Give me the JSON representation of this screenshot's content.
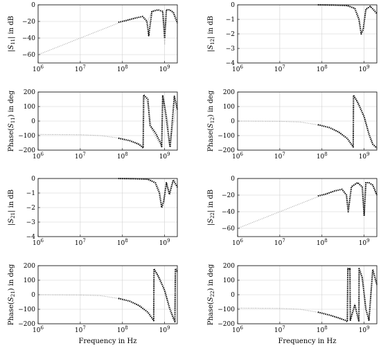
{
  "chart_data": [
    {
      "type": "line",
      "ylabel": "|S11| in dB",
      "xlabel": "",
      "xscale": "log",
      "xlim": [
        1000000,
        2000000000
      ],
      "ylim": [
        -70,
        0
      ],
      "yticks": [
        0,
        -20,
        -40,
        -60
      ],
      "grid": true,
      "series": [
        {
          "style": "gray-dotted",
          "x": [
            1000000,
            3000000,
            10000000,
            30000000,
            100000000,
            200000000,
            300000000,
            400000000,
            500000000,
            700000000,
            900000000,
            1000000000,
            1100000000,
            1300000000,
            1600000000,
            2000000000
          ],
          "y": [
            -60,
            -50.5,
            -40,
            -30.5,
            -20,
            -16,
            -14,
            -19,
            -8,
            -6,
            -8,
            -48,
            -6,
            -6,
            -8,
            -18
          ]
        },
        {
          "style": "black-dotted",
          "x": [
            80000000,
            120000000,
            200000000,
            300000000,
            380000000,
            420000000,
            500000000,
            700000000,
            900000000,
            1000000000,
            1100000000,
            1300000000,
            1600000000,
            2000000000
          ],
          "y": [
            -21,
            -19,
            -16,
            -14,
            -20,
            -37,
            -8,
            -6,
            -8,
            -40,
            -6,
            -6,
            -9,
            -22
          ]
        }
      ]
    },
    {
      "type": "line",
      "ylabel": "|S12| in dB",
      "xlabel": "",
      "xscale": "log",
      "xlim": [
        1000000,
        2000000000
      ],
      "ylim": [
        -4,
        0
      ],
      "yticks": [
        0,
        -1,
        -2,
        -3,
        -4
      ],
      "grid": true,
      "series": [
        {
          "style": "gray-dotted",
          "x": [
            80000000,
            200000000,
            400000000,
            600000000,
            750000000,
            850000000,
            950000000,
            1100000000,
            1400000000,
            2000000000
          ],
          "y": [
            0,
            0,
            -0.05,
            -0.2,
            -0.8,
            -1.9,
            -1.6,
            -0.3,
            -0.1,
            -0.5
          ]
        },
        {
          "style": "black-dotted",
          "x": [
            80000000,
            200000000,
            400000000,
            600000000,
            750000000,
            850000000,
            950000000,
            1100000000,
            1400000000,
            2000000000
          ],
          "y": [
            0,
            -0.02,
            -0.05,
            -0.25,
            -1.0,
            -2.0,
            -1.7,
            -0.3,
            -0.1,
            -0.6
          ]
        }
      ]
    },
    {
      "type": "line",
      "ylabel": "Phase(S11) in deg",
      "xlabel": "",
      "xscale": "log",
      "xlim": [
        1000000,
        2000000000
      ],
      "ylim": [
        -200,
        200
      ],
      "yticks": [
        200,
        100,
        0,
        -100,
        -200
      ],
      "grid": true,
      "series": [
        {
          "style": "gray-dotted",
          "x": [
            1000000,
            10000000,
            30000000,
            100000000,
            200000000,
            300000000,
            310000000,
            400000000,
            500000000,
            700000000,
            850000000,
            900000000,
            1200000000,
            1300000000,
            2000000000
          ],
          "y": [
            -92,
            -94,
            -100,
            -120,
            -150,
            -178,
            178,
            120,
            -60,
            -140,
            -170,
            175,
            0,
            -170,
            140
          ]
        },
        {
          "style": "black-dotted",
          "x": [
            80000000,
            150000000,
            250000000,
            310000000,
            320000000,
            400000000,
            450000000,
            600000000,
            800000000,
            850000000,
            900000000,
            1050000000,
            1300000000,
            1350000000,
            1700000000,
            2000000000
          ],
          "y": [
            -118,
            -135,
            -160,
            -185,
            180,
            150,
            -30,
            -80,
            -150,
            -175,
            178,
            60,
            -150,
            -180,
            170,
            80
          ]
        }
      ]
    },
    {
      "type": "line",
      "ylabel": "Phase(S12) in deg",
      "xlabel": "",
      "xscale": "log",
      "xlim": [
        1000000,
        2000000000
      ],
      "ylim": [
        -200,
        200
      ],
      "yticks": [
        200,
        100,
        0,
        -100,
        -200
      ],
      "grid": true,
      "series": [
        {
          "style": "gray-dotted",
          "x": [
            1000000,
            10000000,
            30000000,
            100000000,
            200000000,
            400000000,
            550000000,
            560000000,
            800000000,
            1000000000,
            1300000000,
            1600000000,
            2000000000
          ],
          "y": [
            0,
            -2,
            -6,
            -30,
            -60,
            -120,
            -175,
            178,
            100,
            20,
            -80,
            -150,
            -185
          ]
        },
        {
          "style": "black-dotted",
          "x": [
            80000000,
            150000000,
            250000000,
            400000000,
            550000000,
            560000000,
            700000000,
            1000000000,
            1300000000,
            1600000000,
            2000000000
          ],
          "y": [
            -25,
            -45,
            -75,
            -120,
            -178,
            178,
            130,
            30,
            -90,
            -160,
            -185
          ]
        }
      ]
    },
    {
      "type": "line",
      "ylabel": "|S21| in dB",
      "xlabel": "",
      "xscale": "log",
      "xlim": [
        1000000,
        2000000000
      ],
      "ylim": [
        -4,
        0
      ],
      "yticks": [
        0,
        -1,
        -2,
        -3,
        -4
      ],
      "grid": true,
      "series": [
        {
          "style": "gray-dotted",
          "x": [
            80000000,
            200000000,
            400000000,
            600000000,
            750000000,
            850000000,
            950000000,
            1100000000,
            1300000000,
            1600000000,
            2000000000
          ],
          "y": [
            0,
            0,
            -0.05,
            -0.2,
            -0.8,
            -1.8,
            -1.5,
            -0.3,
            -1.0,
            -0.1,
            -0.5
          ]
        },
        {
          "style": "black-dotted",
          "x": [
            80000000,
            200000000,
            400000000,
            600000000,
            750000000,
            850000000,
            950000000,
            1100000000,
            1300000000,
            1600000000,
            2000000000
          ],
          "y": [
            0,
            -0.02,
            -0.05,
            -0.3,
            -1.0,
            -2.0,
            -1.6,
            -0.3,
            -1.1,
            -0.1,
            -0.6
          ]
        }
      ]
    },
    {
      "type": "line",
      "ylabel": "|S22| in dB",
      "xlabel": "",
      "xscale": "log",
      "xlim": [
        1000000,
        2000000000
      ],
      "ylim": [
        -70,
        0
      ],
      "yticks": [
        0,
        -20,
        -40,
        -60
      ],
      "grid": true,
      "series": [
        {
          "style": "gray-dotted",
          "x": [
            1000000,
            3000000,
            10000000,
            30000000,
            100000000,
            200000000,
            300000000,
            380000000,
            420000000,
            500000000,
            700000000,
            900000000,
            1000000000,
            1100000000,
            1300000000,
            1600000000,
            2000000000
          ],
          "y": [
            -60,
            -50.5,
            -40,
            -30.5,
            -20,
            -15,
            -13,
            -20,
            -38,
            -10,
            -5,
            -10,
            -40,
            -5,
            -5,
            -8,
            -20
          ]
        },
        {
          "style": "black-dotted",
          "x": [
            80000000,
            120000000,
            200000000,
            300000000,
            380000000,
            420000000,
            500000000,
            700000000,
            900000000,
            1000000000,
            1100000000,
            1300000000,
            1600000000,
            2000000000
          ],
          "y": [
            -21,
            -19,
            -15,
            -13,
            -20,
            -40,
            -10,
            -5,
            -10,
            -45,
            -5,
            -5,
            -8,
            -20
          ]
        }
      ]
    },
    {
      "type": "line",
      "ylabel": "Phase(S21) in deg",
      "xlabel": "Frequency in Hz",
      "xscale": "log",
      "xlim": [
        1000000,
        2000000000
      ],
      "ylim": [
        -200,
        200
      ],
      "yticks": [
        200,
        100,
        0,
        -100,
        -200
      ],
      "grid": true,
      "series": [
        {
          "style": "gray-dotted",
          "x": [
            1000000,
            10000000,
            30000000,
            100000000,
            200000000,
            400000000,
            550000000,
            560000000,
            800000000,
            1000000000,
            1300000000,
            1600000000,
            1750000000,
            1800000000,
            2000000000
          ],
          "y": [
            0,
            -2,
            -6,
            -30,
            -60,
            -120,
            -175,
            178,
            100,
            20,
            -80,
            -150,
            -180,
            175,
            150
          ]
        },
        {
          "style": "black-dotted",
          "x": [
            80000000,
            150000000,
            250000000,
            400000000,
            550000000,
            560000000,
            700000000,
            1000000000,
            1300000000,
            1600000000,
            1750000000,
            1800000000,
            2000000000
          ],
          "y": [
            -25,
            -45,
            -75,
            -120,
            -178,
            178,
            130,
            30,
            -90,
            -160,
            -185,
            180,
            160
          ]
        }
      ]
    },
    {
      "type": "line",
      "ylabel": "Phase(S22) in deg",
      "xlabel": "Frequency in Hz",
      "xscale": "log",
      "xlim": [
        1000000,
        2000000000
      ],
      "ylim": [
        -200,
        200
      ],
      "yticks": [
        200,
        100,
        0,
        -100,
        -200
      ],
      "grid": true,
      "series": [
        {
          "style": "gray-dotted",
          "x": [
            1000000,
            10000000,
            30000000,
            100000000,
            200000000,
            300000000,
            400000000,
            410000000,
            460000000,
            470000000,
            600000000,
            750000000,
            760000000,
            900000000,
            1100000000,
            1300000000,
            1600000000,
            2000000000
          ],
          "y": [
            -92,
            -94,
            -100,
            -125,
            -150,
            -170,
            -180,
            170,
            160,
            -170,
            -60,
            -180,
            175,
            100,
            -100,
            -170,
            170,
            60
          ]
        },
        {
          "style": "black-dotted",
          "x": [
            80000000,
            150000000,
            250000000,
            350000000,
            400000000,
            410000000,
            450000000,
            460000000,
            470000000,
            600000000,
            750000000,
            760000000,
            900000000,
            1100000000,
            1300000000,
            1600000000,
            2000000000
          ],
          "y": [
            -120,
            -140,
            -160,
            -175,
            -185,
            180,
            175,
            180,
            -175,
            -70,
            -185,
            180,
            120,
            -100,
            -175,
            175,
            70
          ]
        }
      ]
    }
  ]
}
